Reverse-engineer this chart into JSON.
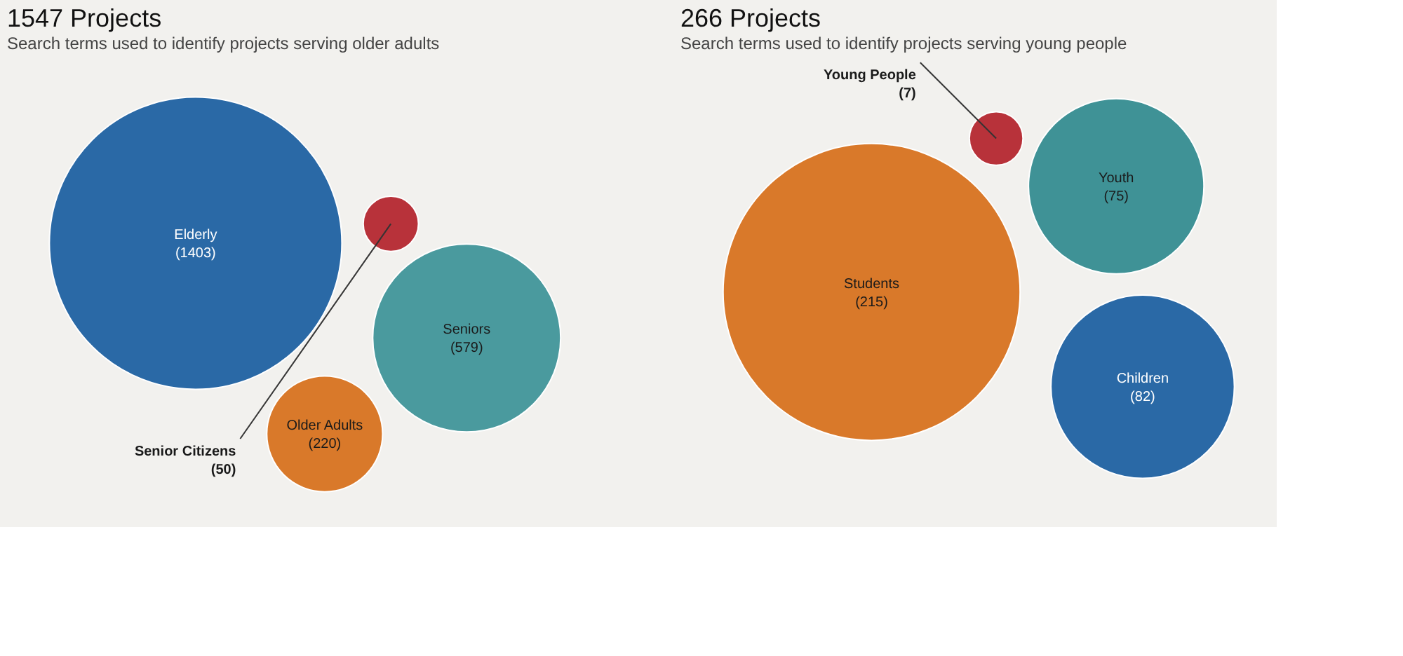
{
  "chart_data": [
    {
      "type": "other",
      "title": "1547 Projects",
      "subtitle": "Search terms used to identify projects serving older adults",
      "categories": [
        "Elderly",
        "Seniors",
        "Older Adults",
        "Senior Citizens"
      ],
      "values": [
        1403,
        579,
        220,
        50
      ],
      "colors": [
        "#2a69a6",
        "#4a9a9e",
        "#d9792a",
        "#b8323a"
      ],
      "value_labels": [
        "(1403)",
        "(579)",
        "(220)",
        "(50)"
      ]
    },
    {
      "type": "other",
      "title": "266 Projects",
      "subtitle": "Search terms used to identify projects serving young people",
      "categories": [
        "Children",
        "Students",
        "Young People",
        "Youth"
      ],
      "values": [
        82,
        215,
        7,
        75
      ],
      "colors": [
        "#2a69a6",
        "#d9792a",
        "#b8323a",
        "#3f9296"
      ],
      "value_labels": [
        "(82)",
        "(215)",
        "(7)",
        "(75)"
      ]
    }
  ]
}
